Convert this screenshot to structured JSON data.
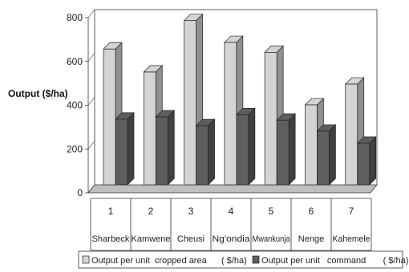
{
  "chart_data": {
    "type": "bar",
    "ylabel": "Output ($/ha)",
    "ylim": [
      0,
      800
    ],
    "yticks": [
      0,
      200,
      400,
      600,
      800
    ],
    "category_numbers": [
      "1",
      "2",
      "3",
      "4",
      "5",
      "6",
      "7"
    ],
    "categories": [
      "Sharbeck",
      "Kamwene",
      "Cheusi",
      "Ng'ondia",
      "Mwankunja",
      "Nenge",
      "Kahemele"
    ],
    "series": [
      {
        "name": "Output per unit  cropped area      ( $/ha)",
        "values": [
          620,
          515,
          750,
          650,
          605,
          365,
          460
        ]
      },
      {
        "name": "Output per unit   command       ( $/ha)",
        "values": [
          300,
          310,
          270,
          320,
          295,
          245,
          190
        ]
      }
    ],
    "legend_position": "bottom",
    "grid": false,
    "colors": {
      "series1": "#d4d4d4",
      "series2": "#5e5e5e",
      "floor": "#bfbfbf"
    }
  }
}
